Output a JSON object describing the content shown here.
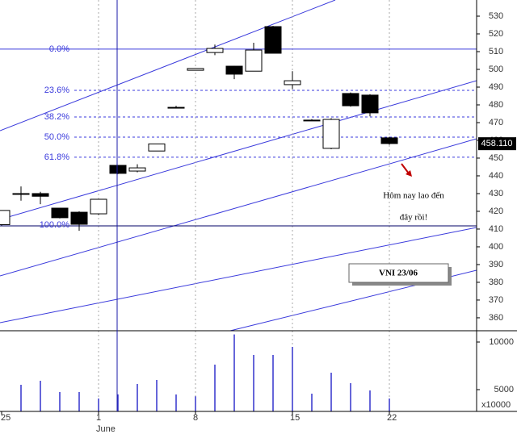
{
  "chart_data": [
    {
      "type": "candlestick",
      "open": [
        412.5,
        430,
        430,
        421.8,
        419.5,
        418.6,
        445.9,
        442.7,
        454,
        478.6,
        499.5,
        509.5,
        501.8,
        499,
        524.1,
        491.4,
        471.4,
        455.5,
        486.4,
        485.5,
        461.4
      ],
      "high": [
        420.5,
        434,
        431,
        422,
        420,
        427,
        446,
        446.5,
        458,
        479.5,
        500.5,
        514,
        502,
        515,
        524.5,
        499,
        472,
        472.5,
        487,
        486,
        462
      ],
      "low": [
        412,
        426,
        424,
        416,
        409,
        418,
        441,
        442,
        454,
        478,
        499.5,
        508,
        494.5,
        499,
        509,
        489,
        471,
        455,
        479,
        473.5,
        457.5
      ],
      "close": [
        420.5,
        430,
        428.5,
        416.4,
        412.7,
        426.8,
        441.4,
        444.5,
        458,
        478.6,
        500.5,
        511.8,
        497.3,
        510.9,
        509.1,
        493.6,
        471.4,
        471.8,
        479.5,
        475.5,
        458.2
      ],
      "up_color": "#ffffff",
      "down_color": "#000000",
      "ylim": [
        352.7,
        539.1
      ],
      "yticks": [
        360,
        370,
        380,
        390,
        400,
        410,
        420,
        430,
        440,
        450,
        460,
        470,
        480,
        490,
        500,
        510,
        520,
        530
      ],
      "last_price": {
        "value": 458.11,
        "label": "458.110"
      },
      "fib_levels": [
        {
          "label": "0.0%",
          "value": 511.4
        },
        {
          "label": "23.6%",
          "value": 488.2
        },
        {
          "label": "38.2%",
          "value": 473.2
        },
        {
          "label": "50.0%",
          "value": 461.8
        },
        {
          "label": "61.8%",
          "value": 450.5
        },
        {
          "label": "100.0%",
          "value": 411.8
        }
      ],
      "annotations": [
        "Hôm nay lao đến",
        "đây rồi!"
      ],
      "box_label": "VNI 23/06"
    },
    {
      "type": "bar",
      "categories": [
        "25",
        null,
        null,
        null,
        null,
        "1",
        null,
        null,
        null,
        null,
        "8",
        null,
        null,
        null,
        null,
        "15",
        null,
        null,
        null,
        null,
        "22"
      ],
      "month_label": "June",
      "values": [
        null,
        5508,
        5932,
        4746,
        4746,
        4068,
        4500,
        5593,
        6017,
        4492,
        4300,
        7627,
        10800,
        8644,
        8644,
        9492,
        4576,
        6780,
        5678,
        4915,
        4068
      ],
      "color": "#3333cc",
      "ylim": [
        2712,
        11017
      ],
      "yticks": [
        5000,
        10000
      ],
      "unit_label": "x10000",
      "grid": true
    }
  ]
}
